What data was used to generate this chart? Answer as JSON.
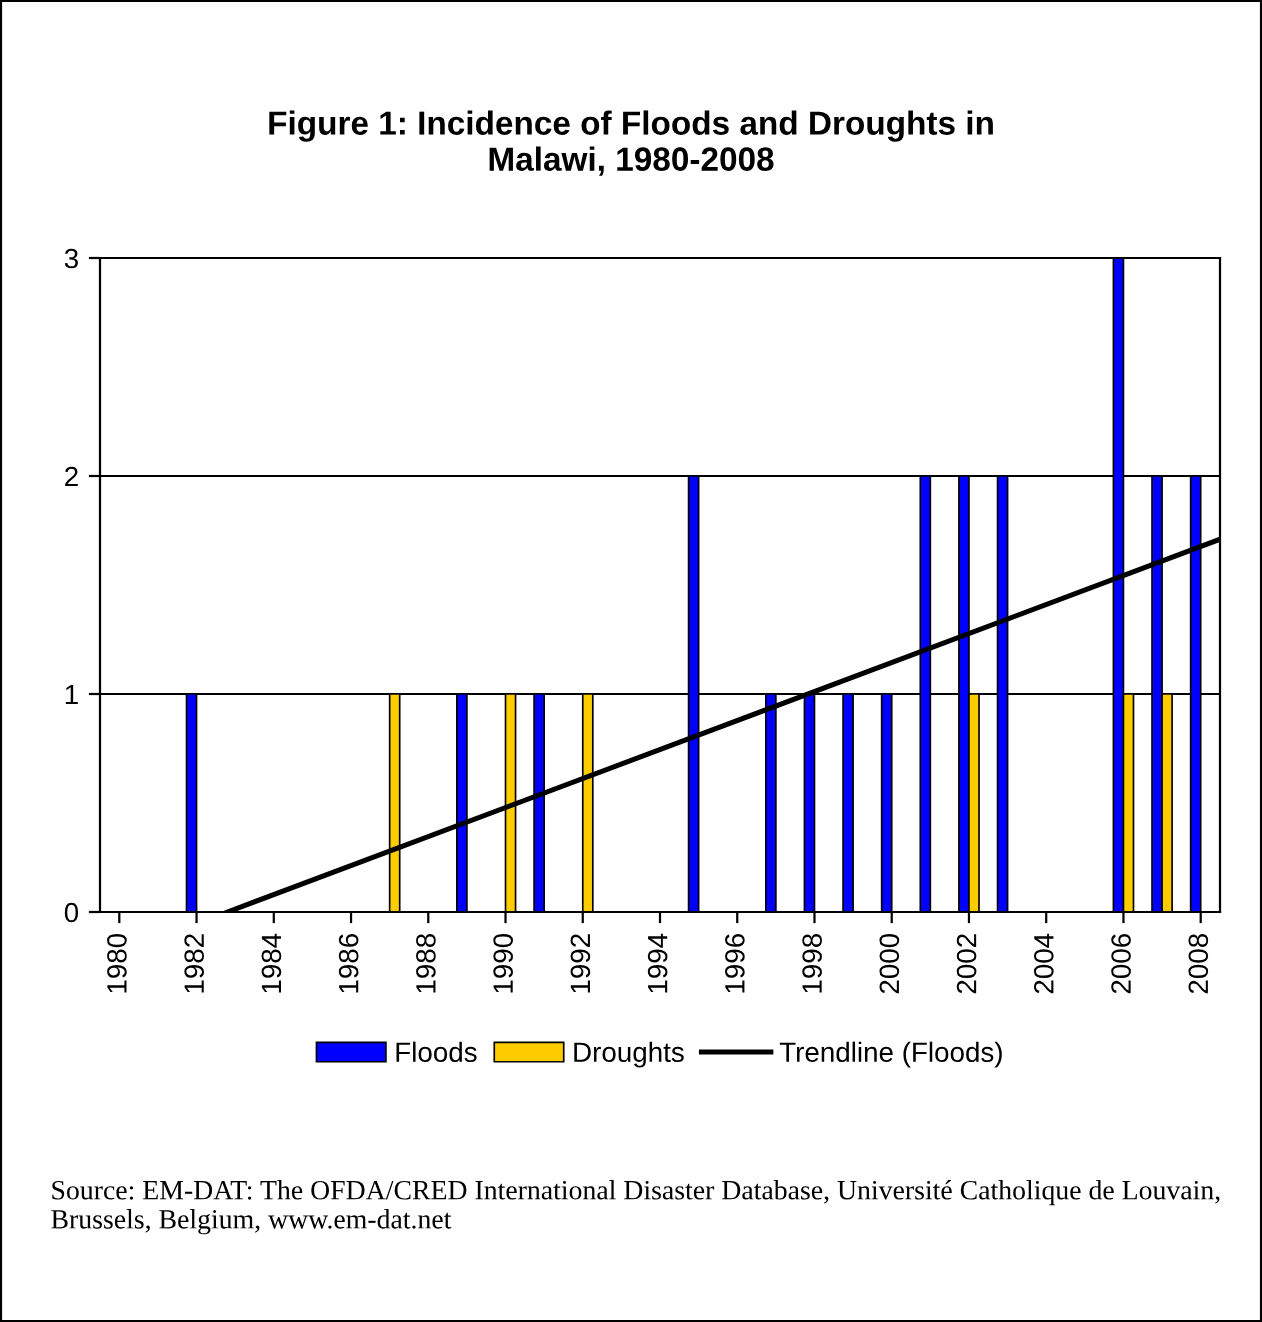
{
  "chart_data": {
    "type": "bar",
    "title": "Figure 1: Incidence of Floods and Droughts in\nMalawi, 1980-2008",
    "x": [
      1980,
      1981,
      1982,
      1983,
      1984,
      1985,
      1986,
      1987,
      1988,
      1989,
      1990,
      1991,
      1992,
      1993,
      1994,
      1995,
      1996,
      1997,
      1998,
      1999,
      2000,
      2001,
      2002,
      2003,
      2004,
      2005,
      2006,
      2007,
      2008
    ],
    "series": [
      {
        "name": "Floods",
        "color": "#0000ff",
        "values": [
          0,
          0,
          1,
          0,
          0,
          0,
          0,
          0,
          0,
          1,
          0,
          1,
          0,
          0,
          0,
          2,
          0,
          1,
          1,
          1,
          1,
          2,
          2,
          2,
          0,
          0,
          3,
          2,
          2
        ]
      },
      {
        "name": "Droughts",
        "color": "#ffcc00",
        "values": [
          0,
          0,
          0,
          0,
          0,
          0,
          0,
          1,
          0,
          0,
          1,
          0,
          1,
          0,
          0,
          0,
          0,
          0,
          0,
          0,
          0,
          0,
          1,
          0,
          0,
          0,
          1,
          1,
          0
        ]
      },
      {
        "name": "Trendline (Floods)",
        "type": "line",
        "color": "#000000",
        "x": [
          1982.8,
          2008.5
        ],
        "values": [
          0,
          1.71
        ]
      }
    ],
    "xlim": [
      1979.5,
      2008.5
    ],
    "xticks": [
      1980,
      1982,
      1984,
      1986,
      1988,
      1990,
      1992,
      1994,
      1996,
      1998,
      2000,
      2002,
      2004,
      2006,
      2008
    ],
    "ylim": [
      0,
      3
    ],
    "yticks": [
      0,
      1,
      2,
      3
    ],
    "grid": "y",
    "legend": "bottom",
    "annotations": [
      "Source: EM-DAT: The OFDA/CRED International Disaster Database, Université Catholique de Louvain, Brussels, Belgium, www.em-dat.net"
    ]
  }
}
